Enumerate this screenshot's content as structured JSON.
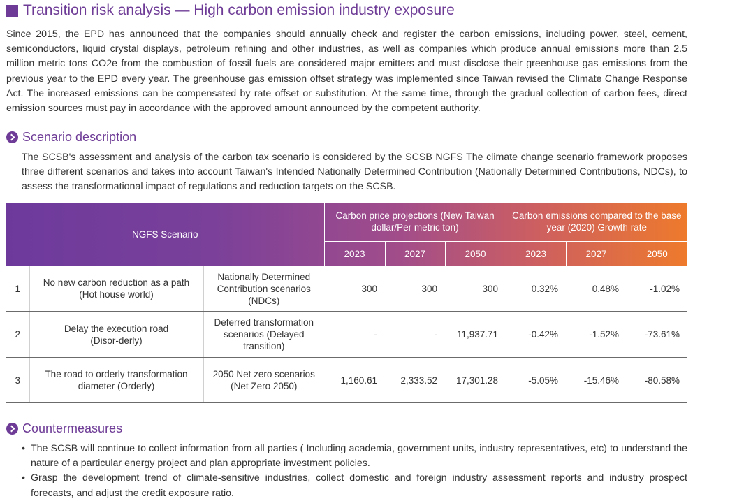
{
  "title": "Transition risk analysis — High carbon emission industry exposure",
  "intro": "Since 2015, the EPD has announced that the companies should annually check and register the carbon emissions, including power, steel, cement, semiconductors, liquid crystal displays, petroleum refining and other industries, as well as companies which produce annual emissions more than 2.5 million metric tons CO2e from the combustion of fossil fuels are considered major emitters and must disclose their greenhouse gas emissions from the previous year to the EPD every year. The greenhouse gas emission offset strategy was implemented since Taiwan revised the Climate Change Response Act. The increased emissions can be compensated by rate offset or substitution. At the same time, through the gradual collection of carbon fees, direct emission sources must pay in accordance with the approved amount announced by the competent authority.",
  "scenario": {
    "heading": "Scenario description",
    "text": "The SCSB's assessment and analysis of the carbon tax scenario is considered by the SCSB NGFS The climate change scenario framework proposes three different scenarios and takes into account Taiwan's Intended Nationally Determined Contribution (Nationally Determined Contributions, NDCs), to assess the transformational impact of regulations and reduction targets on the SCSB."
  },
  "table": {
    "header": {
      "ngfs": "NGFS Scenario",
      "price_group": "Carbon price projections (New Taiwan dollar/Per metric ton)",
      "emission_group": "Carbon emissions compared to the base year (2020) Growth rate",
      "years": [
        "2023",
        "2027",
        "2050"
      ]
    },
    "rows": [
      {
        "index": "1",
        "name": "No new carbon reduction as a path (Hot house world)",
        "scenario": "Nationally Determined Contribution scenarios (NDCs)",
        "price": [
          "300",
          "300",
          "300"
        ],
        "growth": [
          "0.32%",
          "0.48%",
          "-1.02%"
        ]
      },
      {
        "index": "2",
        "name": "Delay the execution road (Disor-derly)",
        "scenario": "Deferred transformation scenarios (Delayed transition)",
        "price": [
          "-",
          "-",
          "11,937.71"
        ],
        "growth": [
          "-0.42%",
          "-1.52%",
          "-73.61%"
        ]
      },
      {
        "index": "3",
        "name": "The road to orderly transformation diameter (Orderly)",
        "scenario": "2050 Net zero scenarios (Net Zero  2050)",
        "price": [
          "1,160.61",
          "2,333.52",
          "17,301.28"
        ],
        "growth": [
          "-5.05%",
          "-15.46%",
          "-80.58%"
        ]
      }
    ]
  },
  "countermeasures": {
    "heading": "Countermeasures",
    "items": [
      "The SCSB will continue to collect information from all parties ( Including academia, government units, industry representatives, etc) to understand the nature of a particular energy project and plan appropriate investment policies.",
      "Grasp the development trend of climate-sensitive industries, collect domestic and foreign industry assessment reports and industry prospect forecasts, and adjust the credit exposure ratio."
    ]
  },
  "colors": {
    "accent": "#6e3c96",
    "gradient_start": "#6d3a9c",
    "gradient_end": "#ee7a2c"
  }
}
